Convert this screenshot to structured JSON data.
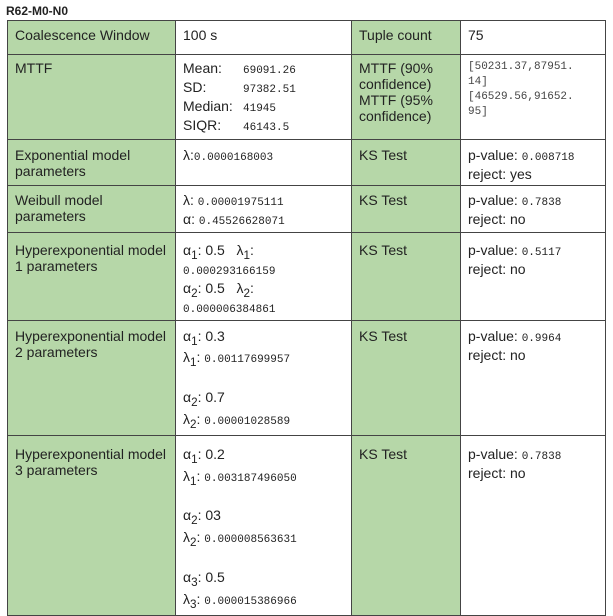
{
  "title": "R62-M0-N0",
  "row1": {
    "coalescence_label": "Coalescence Window",
    "coalescence_value": "100 s",
    "tuple_label": "Tuple count",
    "tuple_value": "75"
  },
  "row2": {
    "mttf_label": "MTTF",
    "mean_label": "Mean:",
    "mean_value": "69091.26",
    "sd_label": "SD:",
    "sd_value": "97382.51",
    "median_label": "Median:",
    "median_value": "41945",
    "siqr_label": "SIQR:",
    "siqr_value": "46143.5",
    "ci90_label": "MTTF (90% confidence)",
    "ci95_label": "MTTF (95% confidence)",
    "ci90_value_1": "[50231.37,87951.",
    "ci90_value_2": "14]",
    "ci95_value_1": "[46529.56,91652.",
    "ci95_value_2": "95]"
  },
  "row3": {
    "label": "Exponential model parameters",
    "lambda_label": "λ:",
    "lambda_value": "0.0000168003",
    "test": "KS Test",
    "p_label": "p-value:",
    "p_value": "0.008718",
    "reject": "reject: yes"
  },
  "row4": {
    "label": "Weibull model parameters",
    "lambda_label": "λ:",
    "lambda_value": "0.00001975111",
    "alpha_label": "α:",
    "alpha_value": "0.45526628071",
    "test": "KS Test",
    "p_label": "p-value:",
    "p_value": "0.7838",
    "reject": "reject: no"
  },
  "row5": {
    "label": "Hyperexponential model 1 parameters",
    "a1": "0.5",
    "l1": "0.000293166159",
    "a2": "0.5",
    "l2": "0.000006384861",
    "test": "KS Test",
    "p_label": "p-value:",
    "p_value": "0.5117",
    "reject": "reject: no"
  },
  "row6": {
    "label": "Hyperexponential model 2 parameters",
    "a1": "0.3",
    "l1": "0.00117699957",
    "a2": "0.7",
    "l2": "0.00001028589",
    "test": "KS Test",
    "p_label": "p-value:",
    "p_value": "0.9964",
    "reject": "reject: no"
  },
  "row7": {
    "label": "Hyperexponential model 3 parameters",
    "a1": "0.2",
    "l1": "0.003187496050",
    "a2": "03",
    "l2": "0.000008563631",
    "a3": "0.5",
    "l3": "0.000015386966",
    "test": "KS Test",
    "p_label": "p-value:",
    "p_value": "0.7838",
    "reject": "reject: no"
  }
}
